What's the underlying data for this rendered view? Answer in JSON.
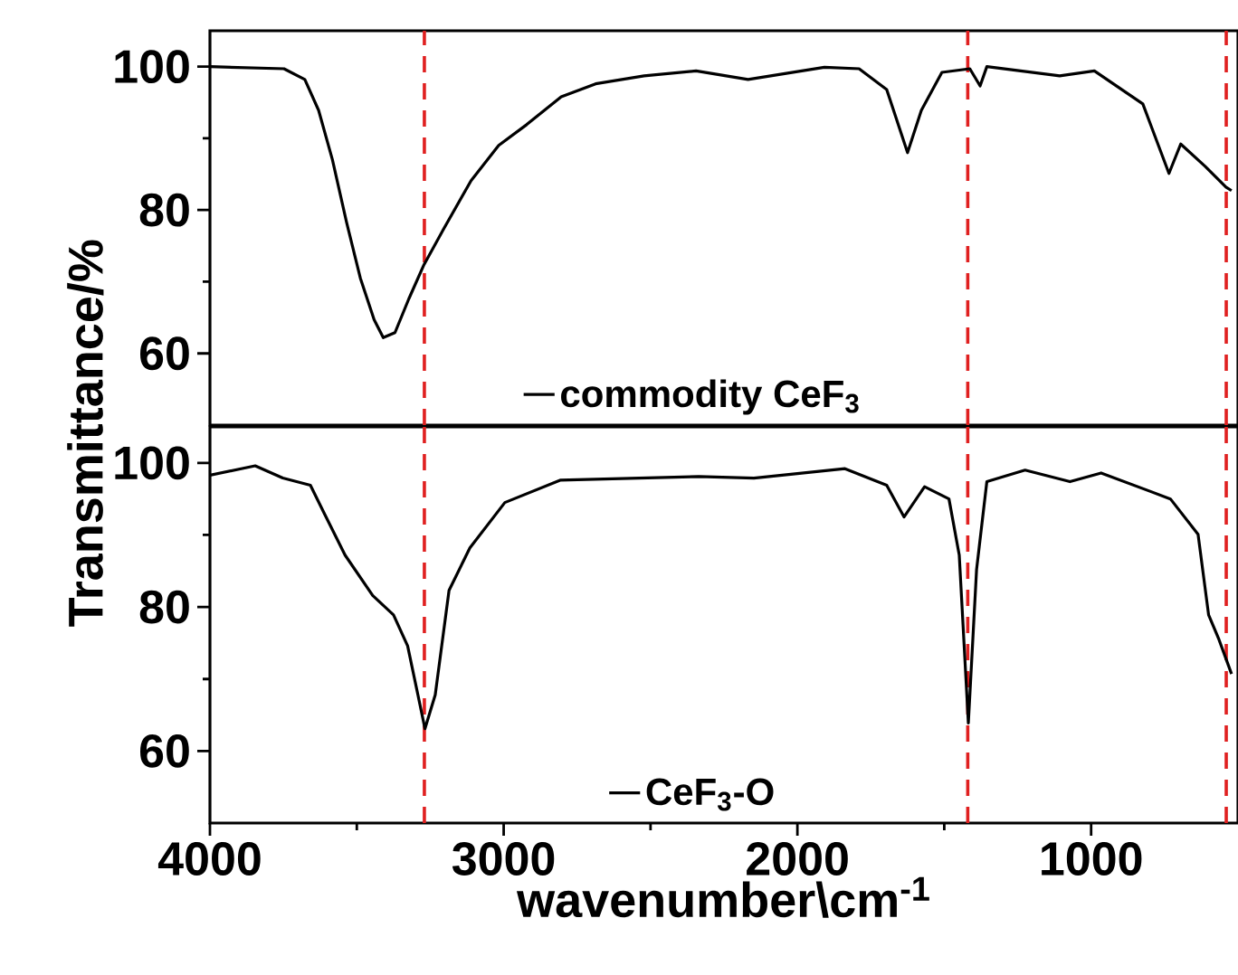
{
  "chart_data": [
    {
      "type": "line",
      "ylabel": "Transmittance/%",
      "xlim": [
        4000,
        500
      ],
      "ylim": [
        50,
        105
      ],
      "yticks": [
        60,
        80,
        100
      ],
      "tick_labels": "y",
      "legend": "bottom",
      "grid": false,
      "series": [
        {
          "name": "commodity CeF$_{3}$",
          "color": "#000000",
          "x": [
            4000,
            3748,
            3677,
            3630,
            3583,
            3535,
            3488,
            3441,
            3410,
            3370,
            3323,
            3271,
            3205,
            3111,
            3017,
            2922,
            2804,
            2687,
            2522,
            2345,
            2168,
            1908,
            1790,
            1696,
            1625,
            1578,
            1508,
            1413,
            1378,
            1355,
            1107,
            989,
            824,
            735,
            695,
            612,
            541,
            522
          ],
          "values": [
            100,
            99.7,
            98.2,
            93.9,
            87,
            78.3,
            70.5,
            64.7,
            62.2,
            62.9,
            67.6,
            72.4,
            77.3,
            84.1,
            89,
            91.9,
            95.8,
            97.6,
            98.7,
            99.4,
            98.2,
            99.9,
            99.7,
            96.8,
            88,
            93.9,
            99.2,
            99.7,
            97.3,
            100,
            98.7,
            99.4,
            94.8,
            85.1,
            89.2,
            86.1,
            83.2,
            82.7
          ]
        }
      ],
      "ref_lines": [
        {
          "axis": "x",
          "value": 3270,
          "color": "#e02020",
          "line_style": "dashed"
        },
        {
          "axis": "x",
          "value": 1420,
          "color": "#e02020",
          "line_style": "dashed"
        },
        {
          "axis": "x",
          "value": 540,
          "color": "#e02020",
          "line_style": "dashed"
        }
      ]
    },
    {
      "type": "line",
      "xlabel": "wavenumber\\cm$^{-1}$",
      "xlim": [
        4000,
        500
      ],
      "ylim": [
        50,
        105
      ],
      "xticks": [
        4000,
        3000,
        2000,
        1000
      ],
      "yticks": [
        60,
        80,
        100
      ],
      "legend": "bottom",
      "grid": false,
      "series": [
        {
          "name": "CeF$_{3}$-O",
          "color": "#000000",
          "x": [
            4000,
            3846,
            3752,
            3658,
            3611,
            3540,
            3446,
            3375,
            3327,
            3292,
            3268,
            3233,
            3186,
            3115,
            2996,
            2808,
            2336,
            2148,
            1838,
            1696,
            1637,
            1567,
            1484,
            1449,
            1418,
            1390,
            1355,
            1225,
            1072,
            966,
            730,
            636,
            600,
            565,
            522
          ],
          "values": [
            98.3,
            99.6,
            97.9,
            96.9,
            93,
            87.2,
            81.6,
            78.9,
            74.6,
            67.8,
            63.1,
            67.8,
            82.3,
            88.2,
            94.5,
            97.6,
            98.1,
            97.9,
            99.2,
            96.9,
            92.5,
            96.7,
            95,
            87.2,
            63.9,
            85.2,
            97.4,
            99,
            97.4,
            98.6,
            95,
            90.1,
            78.9,
            75.5,
            70.7
          ]
        }
      ],
      "ref_lines": [
        {
          "axis": "x",
          "value": 3270,
          "color": "#e02020",
          "line_style": "dashed"
        },
        {
          "axis": "x",
          "value": 1420,
          "color": "#e02020",
          "line_style": "dashed"
        },
        {
          "axis": "x",
          "value": 540,
          "color": "#e02020",
          "line_style": "dashed"
        }
      ]
    }
  ]
}
